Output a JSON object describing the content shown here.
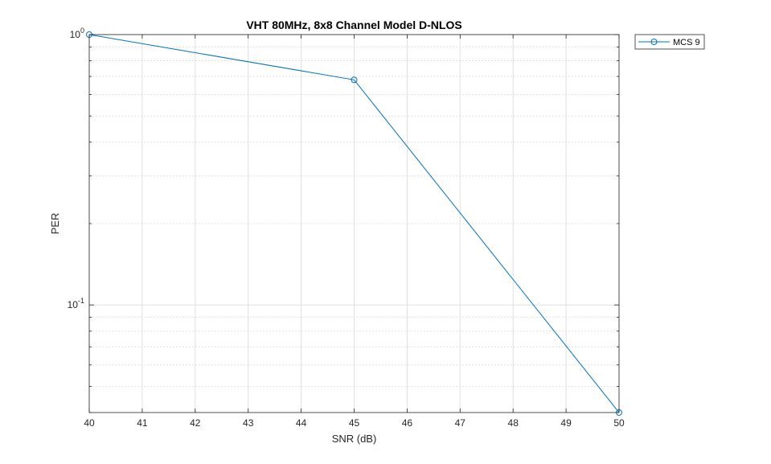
{
  "chart_data": {
    "type": "line",
    "title": "VHT 80MHz, 8x8 Channel Model D-NLOS",
    "xlabel": "SNR (dB)",
    "ylabel": "PER",
    "xlim": [
      40,
      50
    ],
    "ylim": [
      0.04,
      1
    ],
    "yscale": "log",
    "grid": true,
    "legend_position": "outside-top-right",
    "x_ticks": [
      "40",
      "41",
      "42",
      "43",
      "44",
      "45",
      "46",
      "47",
      "48",
      "49",
      "50"
    ],
    "y_ticks": [
      {
        "value": 1,
        "base": "10",
        "exp": "0"
      },
      {
        "value": 0.1,
        "base": "10",
        "exp": "-1"
      }
    ],
    "series": [
      {
        "name": "MCS 9",
        "color": "#0072BD",
        "marker": "circle",
        "x": [
          40,
          45,
          50
        ],
        "y": [
          1.0,
          0.68,
          0.04
        ]
      }
    ]
  }
}
